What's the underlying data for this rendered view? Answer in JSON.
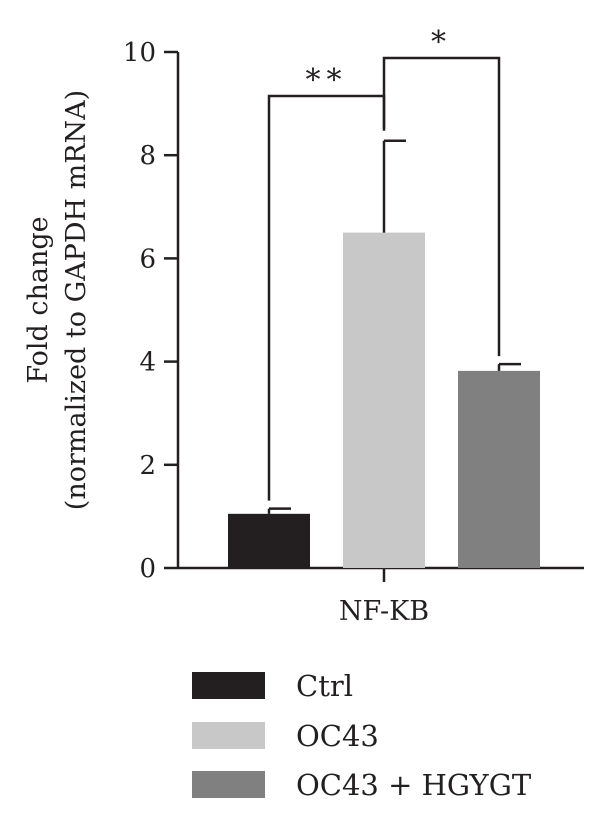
{
  "chart_data": {
    "type": "bar",
    "title": "",
    "xlabel": "",
    "ylabel_lines": [
      "Fold change",
      "(normalized to GAPDH mRNA)"
    ],
    "ylim": [
      0,
      10
    ],
    "yticks": [
      "0",
      "2",
      "4",
      "6",
      "8",
      "10"
    ],
    "categories": [
      "NF-KB"
    ],
    "series": [
      {
        "name": "Ctrl",
        "values": [
          1.05
        ],
        "error": [
          0.1
        ],
        "color": "#231f20"
      },
      {
        "name": "OC43",
        "values": [
          6.5
        ],
        "error": [
          1.78
        ],
        "color": "#c8c8c8"
      },
      {
        "name": "OC43 + HGYGT",
        "values": [
          3.82
        ],
        "error": [
          0.13
        ],
        "color": "#808080"
      }
    ],
    "significance": [
      {
        "from": "Ctrl",
        "to": "OC43",
        "label": "**"
      },
      {
        "from": "OC43",
        "to": "OC43 + HGYGT",
        "label": "*"
      }
    ],
    "grid": false,
    "legend_position": "bottom"
  }
}
